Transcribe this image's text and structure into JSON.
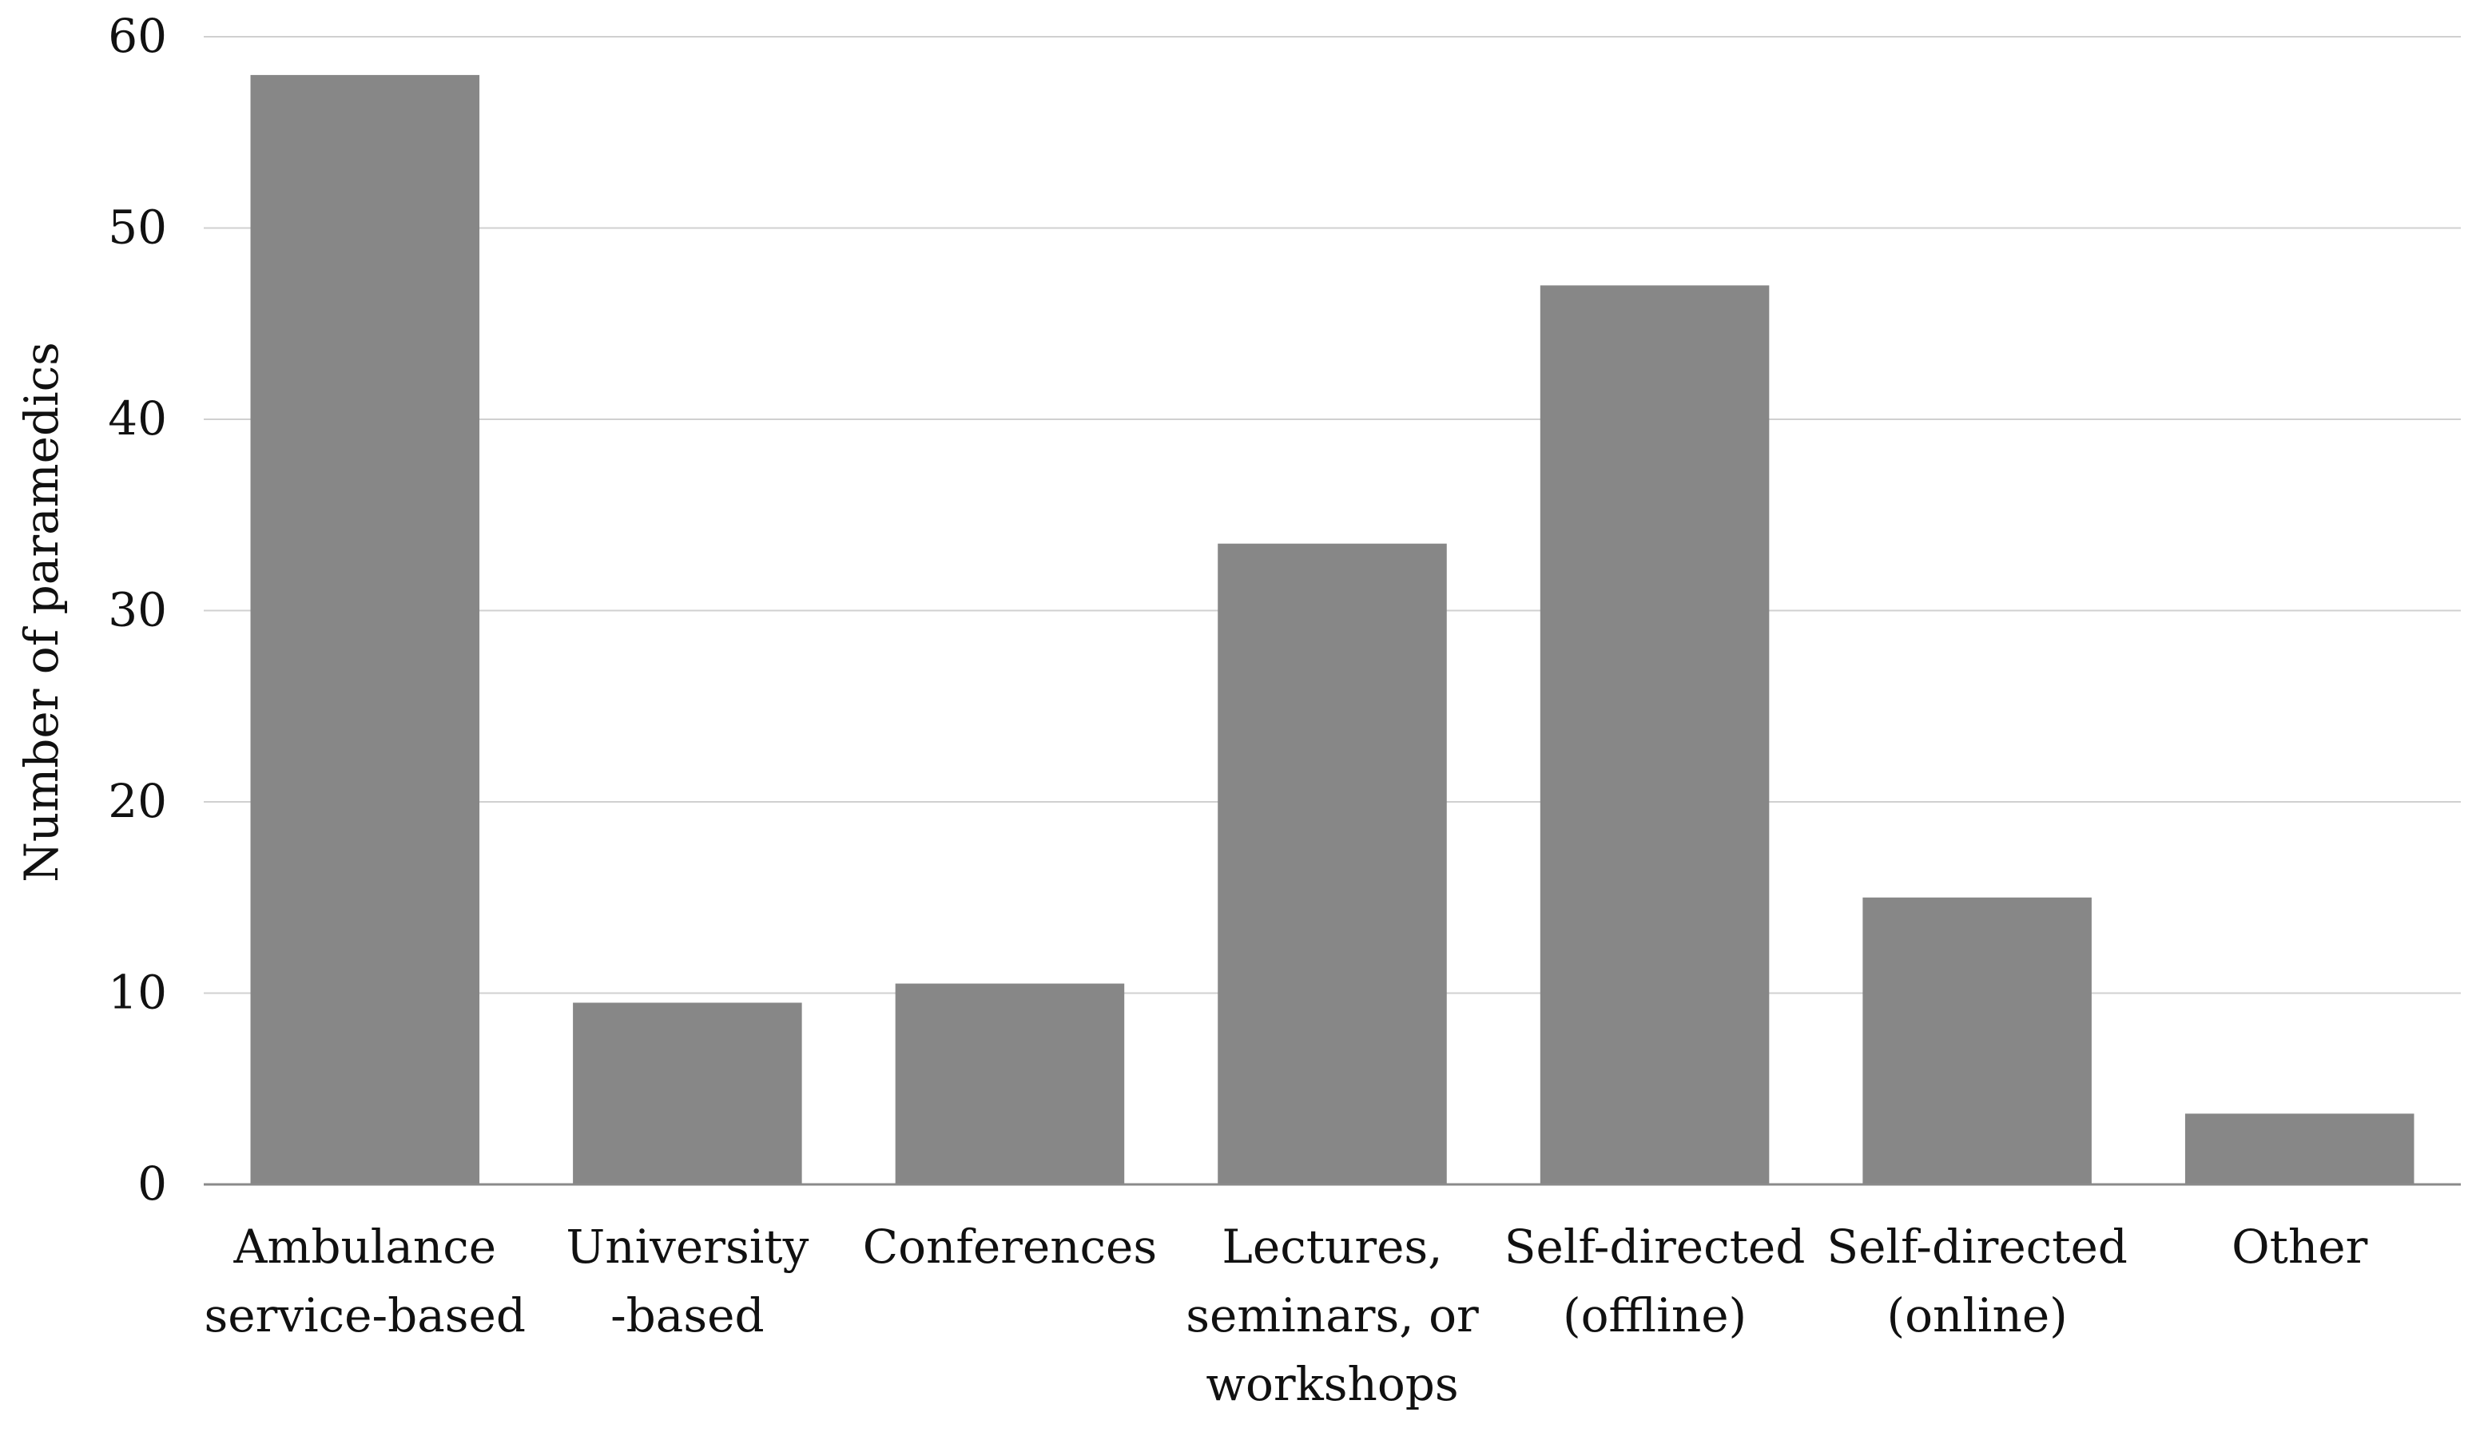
{
  "chart_data": {
    "type": "bar",
    "categories": [
      [
        "Ambulance",
        "service-based"
      ],
      [
        "University",
        "-based"
      ],
      [
        "Conferences"
      ],
      [
        "Lectures,",
        "seminars, or",
        "workshops"
      ],
      [
        "Self-directed",
        "(offline)"
      ],
      [
        "Self-directed",
        "(online)"
      ],
      [
        "Other"
      ]
    ],
    "values": [
      58,
      9.5,
      10.5,
      33.5,
      47,
      15,
      3.7
    ],
    "title": "",
    "xlabel": "",
    "ylabel": "Number of paramedics",
    "ylim": [
      0,
      60
    ],
    "yticks": [
      0,
      10,
      20,
      30,
      40,
      50,
      60
    ],
    "grid": true,
    "bar_color": "#878787",
    "grid_color": "#d0d0d0"
  }
}
